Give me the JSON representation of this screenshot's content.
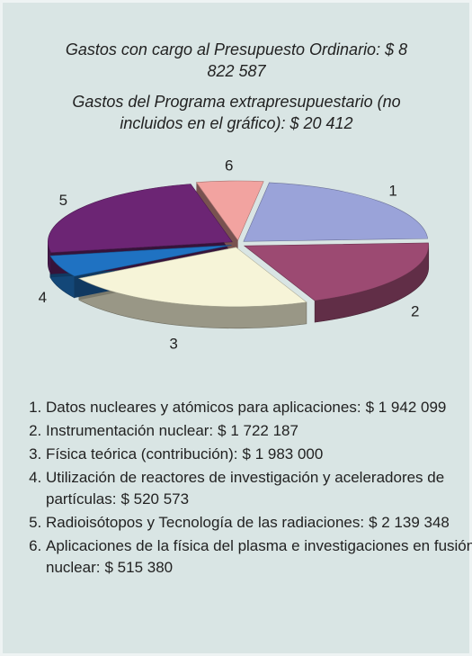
{
  "chart_data": {
    "type": "pie3d",
    "title": "Gastos con cargo al Presupuesto Ordinario: $ 8 822 587",
    "subtitle": "Gastos del Programa extrapresupuestario (no incluidos en el gráfico): $ 20 412",
    "labels": [
      "1",
      "2",
      "3",
      "4",
      "5",
      "6"
    ],
    "categories": [
      "Datos nucleares y atómicos para aplicaciones:",
      "Instrumentación nuclear:",
      "Física teórica (contribución):",
      "Utilización de reactores de investigación y aceleradores de partículas:",
      "Radioisótopos y Tecnología de las radiaciones:",
      "Aplicaciones de la física del plasma e investigaciones en fusión nuclear:"
    ],
    "values": [
      1942099,
      1722187,
      1983000,
      520573,
      2139348,
      515380
    ],
    "value_labels": [
      "$ 1 942 099",
      "$ 1 722 187",
      "$ 1 983 000",
      "$ 520 573",
      "$ 2 139 348",
      "$ 515 380"
    ],
    "colors": [
      "#9aa3d9",
      "#9c4a72",
      "#f6f4d8",
      "#1f72c2",
      "#6c2574",
      "#f2a3a0"
    ]
  }
}
